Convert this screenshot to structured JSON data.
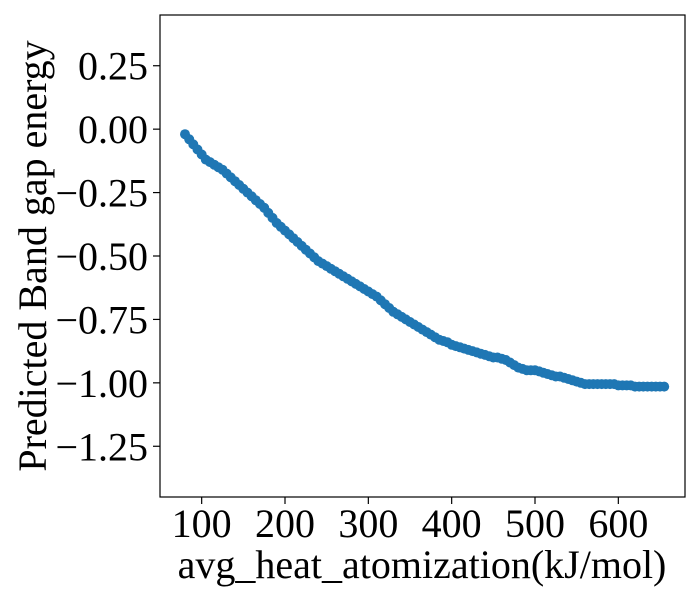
{
  "chart_data": {
    "type": "scatter",
    "title": "",
    "xlabel": "avg_heat_atomization(kJ/mol)",
    "ylabel": "Predicted Band gap energy",
    "xlim": [
      50,
      680
    ],
    "ylim": [
      -1.45,
      0.45
    ],
    "xticks": [
      100,
      200,
      300,
      400,
      500,
      600
    ],
    "xtick_labels": [
      "100",
      "200",
      "300",
      "400",
      "500",
      "600"
    ],
    "yticks": [
      0.25,
      0.0,
      -0.25,
      -0.5,
      -0.75,
      -1.0,
      -1.25
    ],
    "ytick_labels": [
      "0.25",
      "0.00",
      "−0.25",
      "−0.50",
      "−0.75",
      "−1.00",
      "−1.25"
    ],
    "grid": false,
    "legend": "none",
    "colors": {
      "points": "#1f77b4",
      "axes": "#000000"
    },
    "series": [
      {
        "x": [
          80,
          85,
          90,
          95,
          100,
          105,
          110,
          115,
          120,
          125,
          130,
          135,
          140,
          145,
          150,
          155,
          160,
          165,
          170,
          175,
          180,
          185,
          190,
          195,
          200,
          205,
          210,
          215,
          220,
          225,
          230,
          235,
          240,
          245,
          250,
          255,
          260,
          265,
          270,
          275,
          280,
          285,
          290,
          295,
          300,
          305,
          310,
          315,
          320,
          325,
          330,
          335,
          340,
          345,
          350,
          355,
          360,
          365,
          370,
          375,
          380,
          385,
          390,
          395,
          400,
          405,
          410,
          415,
          420,
          425,
          430,
          435,
          440,
          445,
          450,
          455,
          460,
          465,
          470,
          475,
          480,
          485,
          490,
          495,
          500,
          505,
          510,
          515,
          520,
          525,
          530,
          535,
          540,
          545,
          550,
          555,
          560,
          565,
          570,
          575,
          580,
          585,
          590,
          595,
          600,
          605,
          610,
          615,
          620,
          625,
          630,
          635,
          640,
          645,
          650,
          655
        ],
        "y": [
          -0.02,
          -0.04,
          -0.06,
          -0.08,
          -0.1,
          -0.12,
          -0.13,
          -0.14,
          -0.15,
          -0.16,
          -0.175,
          -0.19,
          -0.205,
          -0.22,
          -0.235,
          -0.25,
          -0.265,
          -0.28,
          -0.295,
          -0.31,
          -0.33,
          -0.35,
          -0.37,
          -0.385,
          -0.4,
          -0.415,
          -0.43,
          -0.445,
          -0.46,
          -0.475,
          -0.49,
          -0.505,
          -0.52,
          -0.53,
          -0.54,
          -0.55,
          -0.56,
          -0.57,
          -0.58,
          -0.59,
          -0.6,
          -0.61,
          -0.62,
          -0.63,
          -0.64,
          -0.65,
          -0.66,
          -0.675,
          -0.69,
          -0.705,
          -0.72,
          -0.73,
          -0.74,
          -0.75,
          -0.76,
          -0.77,
          -0.78,
          -0.79,
          -0.8,
          -0.81,
          -0.82,
          -0.83,
          -0.835,
          -0.84,
          -0.85,
          -0.855,
          -0.86,
          -0.865,
          -0.87,
          -0.875,
          -0.88,
          -0.885,
          -0.89,
          -0.895,
          -0.9,
          -0.9,
          -0.905,
          -0.91,
          -0.92,
          -0.93,
          -0.94,
          -0.945,
          -0.95,
          -0.95,
          -0.95,
          -0.955,
          -0.96,
          -0.965,
          -0.97,
          -0.975,
          -0.975,
          -0.98,
          -0.985,
          -0.99,
          -0.995,
          -1.0,
          -1.005,
          -1.005,
          -1.005,
          -1.005,
          -1.005,
          -1.005,
          -1.005,
          -1.005,
          -1.01,
          -1.01,
          -1.01,
          -1.01,
          -1.015,
          -1.015,
          -1.015,
          -1.015,
          -1.015,
          -1.015,
          -1.015,
          -1.015
        ]
      }
    ]
  }
}
